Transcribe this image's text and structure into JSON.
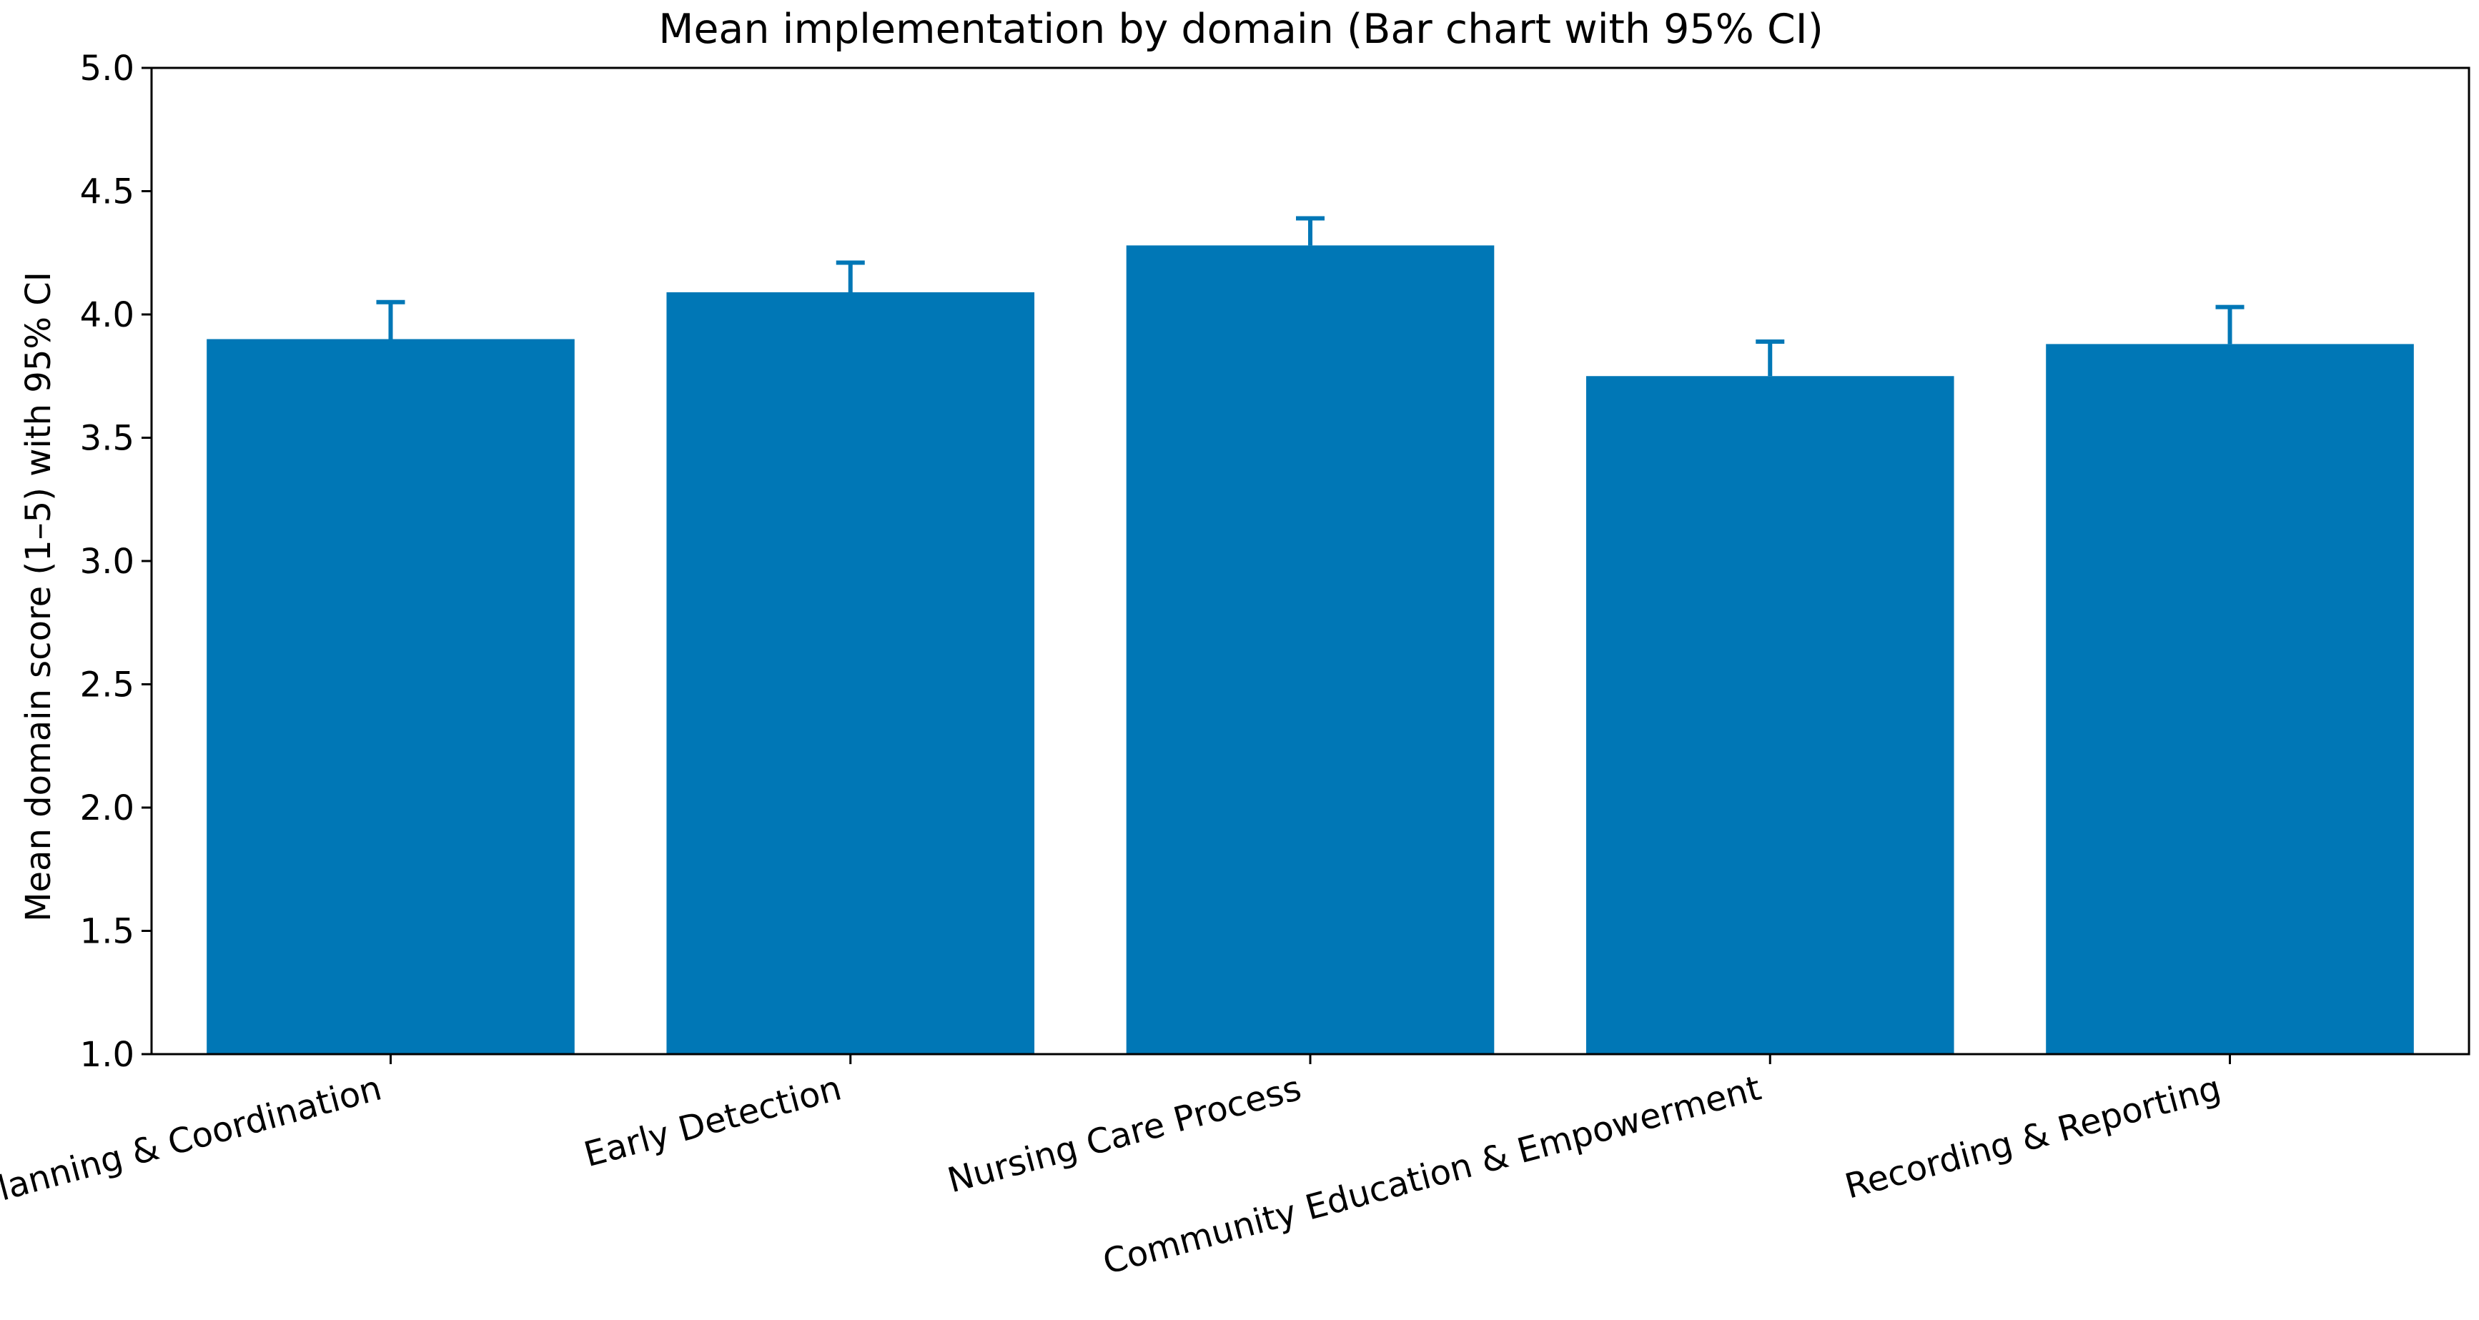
{
  "chart_data": {
    "type": "bar",
    "title": "Mean implementation by domain (Bar chart with 95% CI)",
    "xlabel": "",
    "ylabel": "Mean domain score (1–5) with 95% CI",
    "categories": [
      "Planning & Coordination",
      "Early Detection",
      "Nursing Care Process",
      "Community Education & Empowerment",
      "Recording & Reporting"
    ],
    "values": [
      3.9,
      4.09,
      4.28,
      3.75,
      3.88
    ],
    "ci_upper": [
      4.05,
      4.21,
      4.39,
      3.89,
      4.03
    ],
    "ylim": [
      1.0,
      5.0
    ],
    "yticks": [
      "1.0",
      "1.5",
      "2.0",
      "2.5",
      "3.0",
      "3.5",
      "4.0",
      "4.5",
      "5.0"
    ],
    "grid": false,
    "colors": {
      "bar": "#0077b6",
      "errorbar": "#0077b6"
    }
  }
}
